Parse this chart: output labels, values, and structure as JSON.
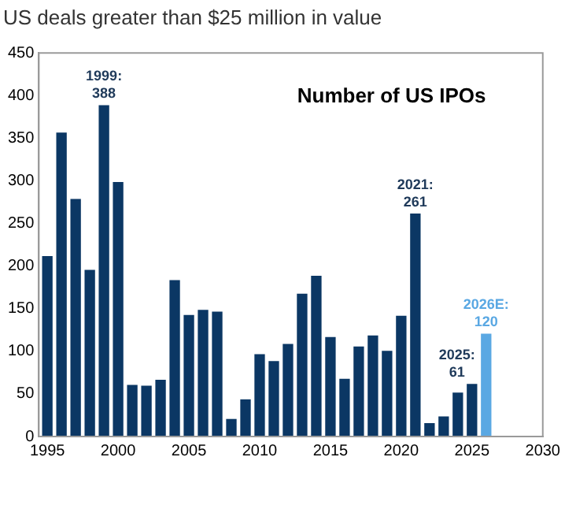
{
  "chart_data": {
    "type": "bar",
    "title": "US deals greater than $25 million in value",
    "subtitle": "Number of US IPOs",
    "x": [
      1995,
      1996,
      1997,
      1998,
      1999,
      2000,
      2001,
      2002,
      2003,
      2004,
      2005,
      2006,
      2007,
      2008,
      2009,
      2010,
      2011,
      2012,
      2013,
      2014,
      2015,
      2016,
      2017,
      2018,
      2019,
      2020,
      2021,
      2022,
      2023,
      2024,
      2025,
      2026
    ],
    "values": [
      211,
      356,
      278,
      195,
      388,
      298,
      60,
      59,
      66,
      183,
      142,
      148,
      146,
      20,
      43,
      96,
      88,
      108,
      167,
      188,
      116,
      67,
      105,
      118,
      100,
      141,
      261,
      15,
      23,
      51,
      61,
      120
    ],
    "colors": [
      "#0b3764",
      "#0b3764",
      "#0b3764",
      "#0b3764",
      "#0b3764",
      "#0b3764",
      "#0b3764",
      "#0b3764",
      "#0b3764",
      "#0b3764",
      "#0b3764",
      "#0b3764",
      "#0b3764",
      "#0b3764",
      "#0b3764",
      "#0b3764",
      "#0b3764",
      "#0b3764",
      "#0b3764",
      "#0b3764",
      "#0b3764",
      "#0b3764",
      "#0b3764",
      "#0b3764",
      "#0b3764",
      "#0b3764",
      "#0b3764",
      "#0b3764",
      "#0b3764",
      "#0b3764",
      "#0b3764",
      "#5aa8e3"
    ],
    "xlim": [
      1994.4,
      2030
    ],
    "xticks": [
      1995,
      2000,
      2005,
      2010,
      2015,
      2020,
      2025,
      2030
    ],
    "ylim": [
      0,
      450
    ],
    "yticks": [
      0,
      50,
      100,
      150,
      200,
      250,
      300,
      350,
      400,
      450
    ],
    "grid": false,
    "legend": false,
    "annotations": [
      {
        "text": "1999: 388",
        "x": 1999,
        "y": 388
      },
      {
        "text": "2021: 261",
        "x": 2021,
        "y": 261
      },
      {
        "text": "2025: 61",
        "x": 2025,
        "y": 61
      },
      {
        "text": "2026E: 120",
        "x": 2026,
        "y": 120
      }
    ]
  }
}
